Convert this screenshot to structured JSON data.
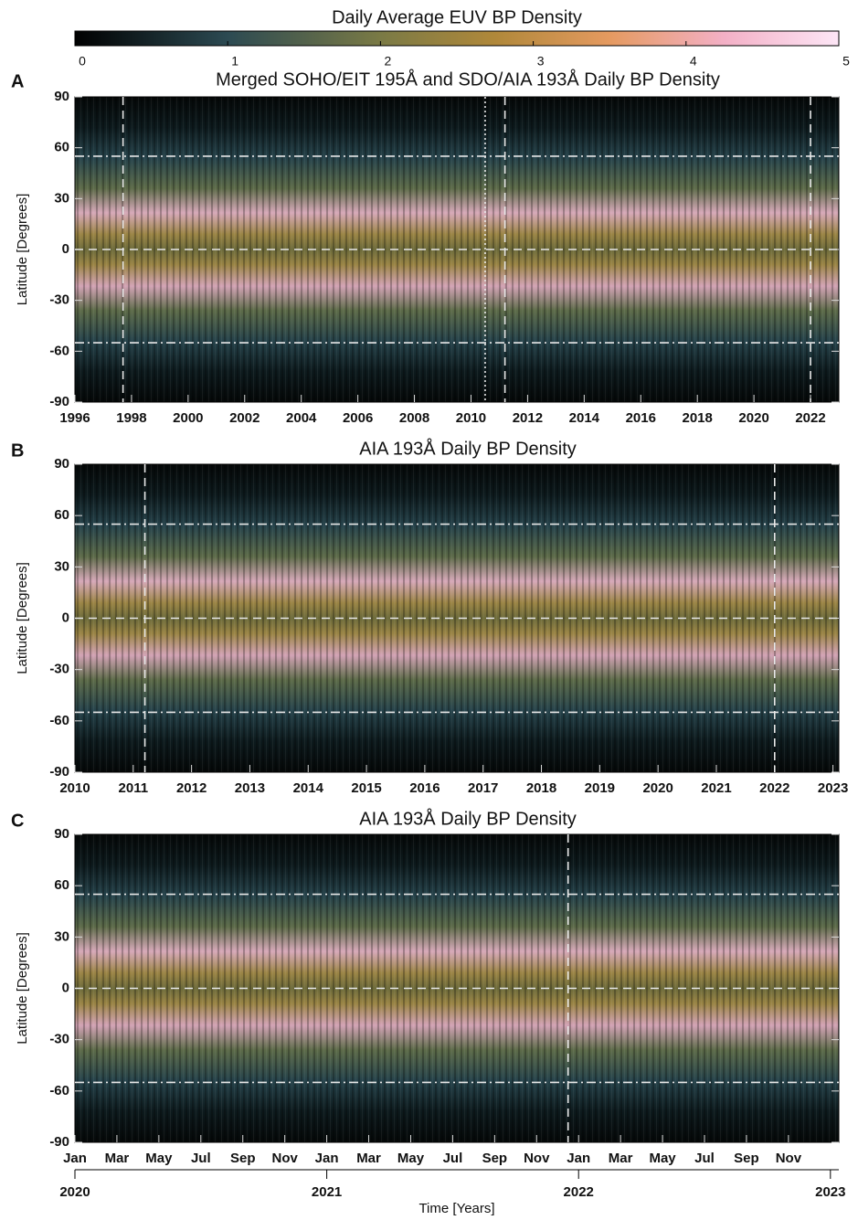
{
  "chart_data": [
    {
      "type": "colorbar",
      "title": "Daily Average EUV BP Density",
      "xlim": [
        0,
        5
      ],
      "xticks": [
        0,
        1,
        2,
        3,
        4,
        5
      ]
    },
    {
      "type": "heatmap",
      "panel_label": "A",
      "title": "Merged SOHO/EIT 195Å and SDO/AIA 193Å Daily BP Density",
      "ylabel": "Latitude [Degrees]",
      "xlim": [
        1996,
        2023
      ],
      "xticks": [
        1996,
        1998,
        2000,
        2002,
        2004,
        2006,
        2008,
        2010,
        2012,
        2014,
        2016,
        2018,
        2020,
        2022
      ],
      "ylim": [
        -90,
        90
      ],
      "yticks": [
        90,
        60,
        30,
        0,
        -30,
        -60,
        -90
      ],
      "hlines_dashdot": [
        55,
        -55
      ],
      "hlines_dashed": [
        0
      ],
      "vlines_dashed": [
        1997.7,
        2011.2,
        2022.0
      ],
      "vlines_dotted": [
        2010.5
      ]
    },
    {
      "type": "heatmap",
      "panel_label": "B",
      "title": "AIA 193Å Daily BP Density",
      "ylabel": "Latitude [Degrees]",
      "xlim": [
        2010,
        2023.1
      ],
      "xticks": [
        2010,
        2011,
        2012,
        2013,
        2014,
        2015,
        2016,
        2017,
        2018,
        2019,
        2020,
        2021,
        2022,
        2023
      ],
      "ylim": [
        -90,
        90
      ],
      "yticks": [
        90,
        60,
        30,
        0,
        -30,
        -60,
        -90
      ],
      "hlines_dashdot": [
        55,
        -55
      ],
      "hlines_dashed": [
        0
      ],
      "vlines_dashed": [
        2011.2,
        2022.0
      ],
      "vlines_dotted": []
    },
    {
      "type": "heatmap",
      "panel_label": "C",
      "title": "AIA 193Å Daily BP Density",
      "ylabel": "Latitude [Degrees]",
      "xlabel": "Time [Years]",
      "xlim": [
        0,
        36.4
      ],
      "xticks": [
        {
          "value": 0,
          "label": "Jan"
        },
        {
          "value": 2,
          "label": "Mar"
        },
        {
          "value": 4,
          "label": "May"
        },
        {
          "value": 6,
          "label": "Jul"
        },
        {
          "value": 8,
          "label": "Sep"
        },
        {
          "value": 10,
          "label": "Nov"
        },
        {
          "value": 12,
          "label": "Jan"
        },
        {
          "value": 14,
          "label": "Mar"
        },
        {
          "value": 16,
          "label": "May"
        },
        {
          "value": 18,
          "label": "Jul"
        },
        {
          "value": 20,
          "label": "Sep"
        },
        {
          "value": 22,
          "label": "Nov"
        },
        {
          "value": 24,
          "label": "Jan"
        },
        {
          "value": 26,
          "label": "Mar"
        },
        {
          "value": 28,
          "label": "May"
        },
        {
          "value": 30,
          "label": "Jul"
        },
        {
          "value": 32,
          "label": "Sep"
        },
        {
          "value": 34,
          "label": "Nov"
        }
      ],
      "year_ticks": [
        {
          "value": 0,
          "label": "2020"
        },
        {
          "value": 12,
          "label": "2021"
        },
        {
          "value": 24,
          "label": "2022"
        },
        {
          "value": 36,
          "label": "2023"
        }
      ],
      "ylim": [
        -90,
        90
      ],
      "yticks": [
        90,
        60,
        30,
        0,
        -30,
        -60,
        -90
      ],
      "hlines_dashdot": [
        55,
        -55
      ],
      "hlines_dashed": [
        0
      ],
      "vlines_dashed": [
        23.5
      ],
      "vlines_dotted": []
    }
  ]
}
